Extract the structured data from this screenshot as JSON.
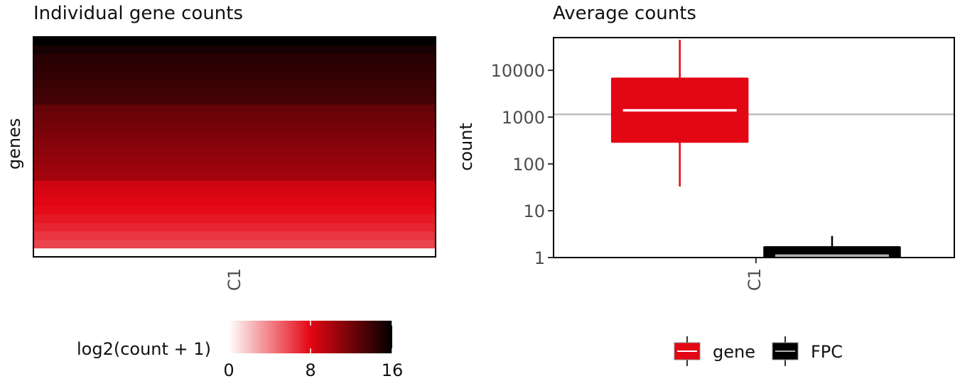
{
  "chart_data": [
    {
      "type": "heatmap",
      "title": "Individual gene counts",
      "ylabel": "genes",
      "xlabel": "",
      "categories": [
        "C1"
      ],
      "value_scale": "log2(count + 1)",
      "rows_log2_values": [
        16,
        15.2,
        14.6,
        14.4,
        14.2,
        14.0,
        13.8,
        13.6,
        12.4,
        12.2,
        11.9,
        11.6,
        11.3,
        11.1,
        10.8,
        10.5,
        10.3,
        8.7,
        8.4,
        8.1,
        7.8,
        7.4,
        7.0,
        6.5,
        6.0,
        0
      ],
      "legend": {
        "title": "log2(count + 1)",
        "ticks": [
          0,
          8,
          16
        ],
        "range": [
          0,
          16
        ],
        "colors": [
          "#ffffff",
          "#e30613",
          "#000000"
        ]
      }
    },
    {
      "type": "box",
      "title": "Average counts",
      "ylabel": "count",
      "xlabel": "",
      "categories": [
        "C1"
      ],
      "y_scale": "log10",
      "ylim": [
        1,
        50000
      ],
      "yticks": [
        1,
        10,
        100,
        1000,
        10000
      ],
      "yticklabels": [
        "1",
        "10",
        "100",
        "1000",
        "10000"
      ],
      "reference_line": 1150,
      "series": [
        {
          "name": "gene",
          "color": "#e30613",
          "median_color": "#ffffff",
          "whisker_low": 33,
          "q1": 290,
          "median": 1400,
          "q3": 6800,
          "whisker_high": 45000
        },
        {
          "name": "FPC",
          "color": "#000000",
          "median_color": "#b0b0b0",
          "whisker_low": 1,
          "q1": 1,
          "median": 1.1,
          "q3": 1.7,
          "whisker_high": 2.9
        }
      ],
      "legend": {
        "placement": "bottom",
        "entries": [
          "gene",
          "FPC"
        ]
      }
    }
  ]
}
